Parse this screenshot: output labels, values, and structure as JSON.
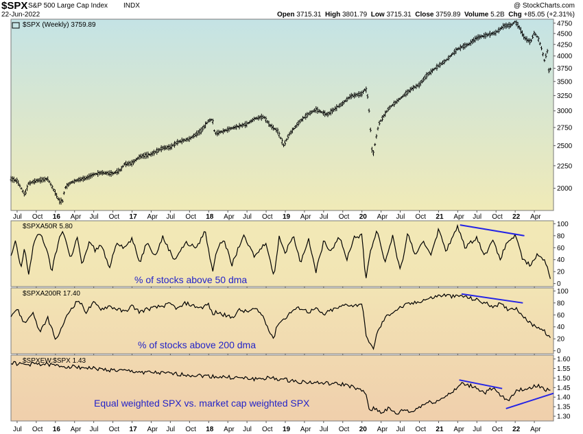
{
  "header": {
    "symbol": "$SPX",
    "name": "S&P 500 Large Cap Index",
    "exchange": "INDX",
    "date": "22-Jun-2022",
    "copyright": "@ StockCharts.com",
    "open_label": "Open",
    "open": "3715.31",
    "high_label": "High",
    "high": "3801.79",
    "low_label": "Low",
    "low": "3715.31",
    "close_label": "Close",
    "close": "3759.89",
    "volume_label": "Volume",
    "volume": "5.2B",
    "chg_label": "Chg",
    "chg": "+85.05 (+2.31%)"
  },
  "colors": {
    "panel_border": "#7a7a7a",
    "price_bar": "#000000",
    "indicator_line": "#000000",
    "trend_line": "#2323e6",
    "annotation_text": "#2323c8"
  },
  "chart_data": [
    {
      "type": "bar",
      "legend": "$SPX (Weekly) 3759.89",
      "y_ticks": [
        2000,
        2250,
        2500,
        2750,
        3000,
        3250,
        3500,
        3750,
        4000,
        4250,
        4500,
        4750
      ],
      "ylim": [
        1780,
        4850
      ],
      "log_scale": true,
      "x_ticks": [
        "Jul",
        "Oct",
        "16",
        "Apr",
        "Jul",
        "Oct",
        "17",
        "Apr",
        "Jul",
        "Oct",
        "18",
        "Apr",
        "Jul",
        "Oct",
        "19",
        "Apr",
        "Jul",
        "Oct",
        "20",
        "Apr",
        "Jul",
        "Oct",
        "21",
        "Apr",
        "Jul",
        "Oct",
        "22",
        "Apr"
      ],
      "x_tick_t": [
        0.5,
        0.75,
        1.0,
        1.25,
        1.5,
        1.75,
        2.0,
        2.25,
        2.5,
        2.75,
        3.0,
        3.25,
        3.5,
        3.75,
        4.0,
        4.25,
        4.5,
        4.75,
        5.0,
        5.25,
        5.5,
        5.75,
        6.0,
        6.25,
        6.5,
        6.75,
        7.0,
        7.25
      ],
      "t_range": [
        0.42,
        7.5
      ],
      "series": [
        {
          "values_t": [
            0.42,
            0.5,
            0.6,
            0.65,
            0.75,
            0.9,
            1.0,
            1.05,
            1.1,
            1.12,
            1.2,
            1.3,
            1.4,
            1.5,
            1.6,
            1.75,
            1.85,
            1.9,
            2.0,
            2.1,
            2.25,
            2.4,
            2.5,
            2.6,
            2.75,
            2.9,
            3.0,
            3.05,
            3.08,
            3.2,
            3.3,
            3.5,
            3.6,
            3.72,
            3.8,
            3.9,
            3.98,
            4.05,
            4.2,
            4.3,
            4.4,
            4.55,
            4.6,
            4.75,
            4.85,
            5.0,
            5.05,
            5.08,
            5.13,
            5.15,
            5.22,
            5.35,
            5.5,
            5.65,
            5.75,
            5.85,
            6.0,
            6.1,
            6.25,
            6.4,
            6.5,
            6.6,
            6.75,
            6.85,
            6.95,
            7.0,
            7.05,
            7.12,
            7.2,
            7.25,
            7.3,
            7.35,
            7.38,
            7.42,
            7.44,
            7.47
          ],
          "values": [
            2100,
            2080,
            1930,
            2050,
            2080,
            2100,
            1950,
            1870,
            1870,
            2000,
            2060,
            2090,
            2110,
            2150,
            2170,
            2160,
            2200,
            2270,
            2280,
            2360,
            2390,
            2470,
            2480,
            2550,
            2590,
            2700,
            2850,
            2870,
            2660,
            2700,
            2740,
            2800,
            2880,
            2910,
            2780,
            2700,
            2500,
            2650,
            2850,
            2950,
            3020,
            2940,
            2990,
            3120,
            3240,
            3280,
            3380,
            3200,
            2450,
            2400,
            2800,
            3040,
            3200,
            3370,
            3440,
            3620,
            3800,
            3910,
            4150,
            4260,
            4400,
            4450,
            4520,
            4680,
            4700,
            4790,
            4660,
            4400,
            4300,
            4520,
            4390,
            4130,
            3900,
            4100,
            3690,
            3760
          ]
        }
      ]
    },
    {
      "type": "line",
      "legend": "$SPXA50R 5.80",
      "annotation": "% of stocks above 50 dma",
      "y_ticks": [
        0,
        20,
        40,
        60,
        80,
        100
      ],
      "ylim": [
        -5,
        105
      ],
      "series": [
        {
          "values_t": [
            0.42,
            0.48,
            0.55,
            0.6,
            0.65,
            0.72,
            0.8,
            0.88,
            0.95,
            1.05,
            1.1,
            1.2,
            1.28,
            1.35,
            1.45,
            1.52,
            1.6,
            1.7,
            1.8,
            1.9,
            2.0,
            2.1,
            2.2,
            2.3,
            2.4,
            2.55,
            2.7,
            2.85,
            2.95,
            3.05,
            3.1,
            3.2,
            3.3,
            3.45,
            3.6,
            3.75,
            3.85,
            3.92,
            4.0,
            4.1,
            4.2,
            4.3,
            4.4,
            4.5,
            4.6,
            4.7,
            4.8,
            4.9,
            5.0,
            5.05,
            5.1,
            5.2,
            5.3,
            5.4,
            5.5,
            5.6,
            5.7,
            5.8,
            5.9,
            6.0,
            6.1,
            6.25,
            6.35,
            6.5,
            6.6,
            6.7,
            6.8,
            6.9,
            7.0,
            7.1,
            7.2,
            7.3,
            7.4,
            7.47
          ],
          "values": [
            45,
            70,
            25,
            60,
            15,
            70,
            85,
            60,
            20,
            75,
            90,
            40,
            80,
            30,
            72,
            55,
            65,
            25,
            70,
            60,
            75,
            35,
            72,
            45,
            78,
            40,
            68,
            60,
            90,
            20,
            55,
            75,
            30,
            80,
            45,
            70,
            10,
            80,
            50,
            82,
            35,
            75,
            20,
            70,
            55,
            80,
            40,
            78,
            80,
            5,
            50,
            90,
            35,
            80,
            20,
            85,
            45,
            70,
            50,
            90,
            55,
            95,
            60,
            78,
            45,
            75,
            40,
            70,
            80,
            40,
            30,
            50,
            35,
            6
          ]
        }
      ],
      "trend_t": [
        6.28,
        7.12
      ],
      "trend_values": [
        98,
        80
      ]
    },
    {
      "type": "line",
      "legend": "$SPXA200R 17.40",
      "annotation": "% of stocks above 200 dma",
      "y_ticks": [
        0,
        20,
        40,
        60,
        80,
        100
      ],
      "ylim": [
        -5,
        105
      ],
      "series": [
        {
          "values_t": [
            0.42,
            0.5,
            0.6,
            0.7,
            0.8,
            0.9,
            1.0,
            1.05,
            1.1,
            1.2,
            1.3,
            1.4,
            1.5,
            1.6,
            1.7,
            1.8,
            1.9,
            2.0,
            2.1,
            2.2,
            2.3,
            2.4,
            2.5,
            2.6,
            2.7,
            2.8,
            2.9,
            3.0,
            3.05,
            3.1,
            3.2,
            3.3,
            3.4,
            3.5,
            3.6,
            3.7,
            3.75,
            3.85,
            3.9,
            4.0,
            4.1,
            4.2,
            4.3,
            4.4,
            4.5,
            4.6,
            4.7,
            4.8,
            4.9,
            5.0,
            5.05,
            5.1,
            5.15,
            5.2,
            5.3,
            5.4,
            5.5,
            5.6,
            5.7,
            5.8,
            5.9,
            6.0,
            6.1,
            6.2,
            6.3,
            6.4,
            6.5,
            6.6,
            6.7,
            6.8,
            6.9,
            7.0,
            7.1,
            7.2,
            7.3,
            7.4,
            7.47
          ],
          "values": [
            60,
            70,
            45,
            65,
            30,
            55,
            20,
            25,
            45,
            70,
            85,
            65,
            80,
            70,
            75,
            70,
            65,
            75,
            65,
            70,
            72,
            75,
            78,
            70,
            80,
            75,
            72,
            78,
            60,
            65,
            60,
            55,
            68,
            65,
            70,
            60,
            45,
            20,
            45,
            55,
            68,
            72,
            65,
            70,
            60,
            68,
            72,
            78,
            75,
            80,
            30,
            10,
            5,
            30,
            55,
            65,
            72,
            78,
            80,
            85,
            88,
            92,
            93,
            90,
            92,
            88,
            85,
            80,
            75,
            78,
            70,
            72,
            60,
            45,
            40,
            30,
            17
          ]
        }
      ],
      "trend_t": [
        6.3,
        7.1
      ],
      "trend_values": [
        95,
        80
      ]
    },
    {
      "type": "line",
      "legend": "$SPXEW:$SPX 1.43",
      "annotation": "Equal weighted SPX vs. market cap weighted SPX",
      "y_ticks": [
        "1.30",
        "1.35",
        "1.40",
        "1.45",
        "1.50",
        "1.55",
        "1.60"
      ],
      "ylim": [
        1.275,
        1.62
      ],
      "series": [
        {
          "values_t": [
            0.42,
            0.6,
            0.8,
            1.0,
            1.2,
            1.4,
            1.6,
            1.8,
            2.0,
            2.2,
            2.4,
            2.6,
            2.8,
            3.0,
            3.2,
            3.4,
            3.6,
            3.8,
            4.0,
            4.2,
            4.4,
            4.6,
            4.8,
            4.95,
            5.05,
            5.1,
            5.15,
            5.25,
            5.35,
            5.45,
            5.55,
            5.65,
            5.75,
            5.85,
            6.0,
            6.1,
            6.2,
            6.3,
            6.4,
            6.5,
            6.6,
            6.7,
            6.8,
            6.9,
            7.0,
            7.1,
            7.2,
            7.3,
            7.4,
            7.47
          ],
          "values": [
            1.58,
            1.57,
            1.575,
            1.565,
            1.56,
            1.555,
            1.545,
            1.54,
            1.535,
            1.53,
            1.525,
            1.52,
            1.515,
            1.51,
            1.505,
            1.5,
            1.495,
            1.5,
            1.49,
            1.48,
            1.475,
            1.47,
            1.465,
            1.44,
            1.42,
            1.33,
            1.345,
            1.32,
            1.34,
            1.31,
            1.335,
            1.32,
            1.35,
            1.37,
            1.38,
            1.41,
            1.43,
            1.47,
            1.46,
            1.45,
            1.42,
            1.45,
            1.41,
            1.38,
            1.43,
            1.44,
            1.45,
            1.46,
            1.44,
            1.43
          ]
        }
      ],
      "trend_t": [
        [
          6.27,
          6.83
        ],
        [
          6.88,
          7.5
        ]
      ],
      "trend_values": [
        [
          1.49,
          1.445
        ],
        [
          1.34,
          1.42
        ]
      ]
    }
  ]
}
